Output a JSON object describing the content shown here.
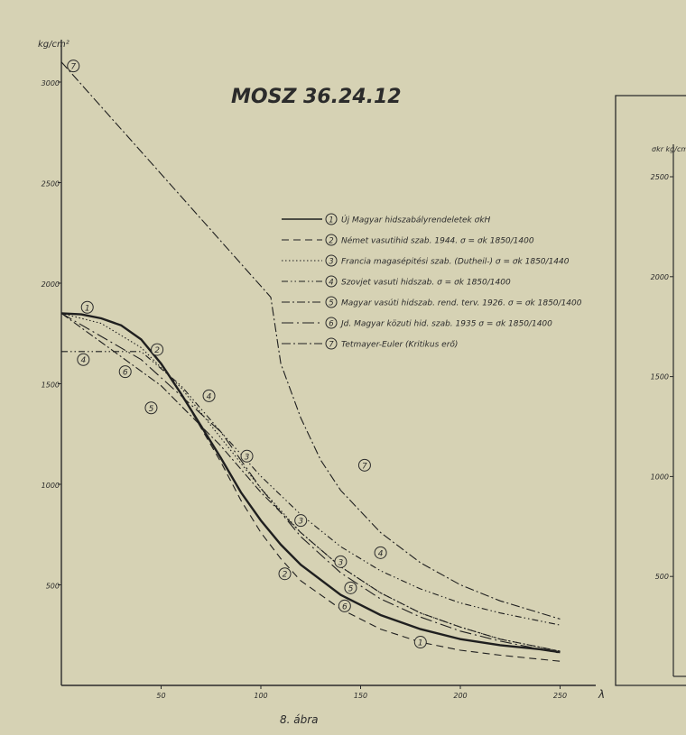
{
  "chart_data": [
    {
      "type": "line",
      "title": "MOSZ 36.24.12",
      "caption": "8. ábra",
      "ylabel": "kg/cm²",
      "xlabel": "λ",
      "xlim": [
        0,
        270
      ],
      "ylim": [
        0,
        3250
      ],
      "x_ticks": [
        50,
        100,
        150,
        200,
        250
      ],
      "y_ticks": [
        500,
        1000,
        1500,
        2000,
        2500,
        3000
      ],
      "grid": false,
      "legend_position": "top-right",
      "series": [
        {
          "id": 1,
          "marker": "1",
          "name": "Új Magyar hidszabályrendeletek σkH",
          "dash": "solid-thick",
          "points": [
            [
              0,
              1850
            ],
            [
              10,
              1845
            ],
            [
              20,
              1825
            ],
            [
              30,
              1790
            ],
            [
              40,
              1720
            ],
            [
              50,
              1600
            ],
            [
              60,
              1450
            ],
            [
              70,
              1290
            ],
            [
              80,
              1130
            ],
            [
              90,
              960
            ],
            [
              100,
              820
            ],
            [
              110,
              700
            ],
            [
              120,
              600
            ],
            [
              140,
              450
            ],
            [
              160,
              350
            ],
            [
              180,
              280
            ],
            [
              200,
              230
            ],
            [
              220,
              200
            ],
            [
              240,
              180
            ],
            [
              250,
              165
            ]
          ],
          "label_at": [
            180,
            215
          ]
        },
        {
          "id": 2,
          "marker": "2",
          "name": "Német vasutihid szab. 1944. σ = σk 1850/1400",
          "dash": "dashed",
          "points": [
            [
              0,
              1850
            ],
            [
              10,
              1845
            ],
            [
              20,
              1825
            ],
            [
              30,
              1790
            ],
            [
              40,
              1720
            ],
            [
              50,
              1600
            ],
            [
              60,
              1450
            ],
            [
              70,
              1280
            ],
            [
              80,
              1110
            ],
            [
              90,
              920
            ],
            [
              100,
              760
            ],
            [
              110,
              630
            ],
            [
              120,
              520
            ],
            [
              140,
              380
            ],
            [
              160,
              280
            ],
            [
              180,
              215
            ],
            [
              200,
              175
            ],
            [
              220,
              150
            ],
            [
              240,
              130
            ],
            [
              250,
              120
            ]
          ],
          "label_at": [
            112,
            555
          ]
        },
        {
          "id": 3,
          "marker": "3",
          "name": "Francia magasépitési szab. (Dutheil-) σ = σk 1850/1440",
          "dash": "dotted",
          "points": [
            [
              0,
              1850
            ],
            [
              20,
              1800
            ],
            [
              40,
              1680
            ],
            [
              60,
              1480
            ],
            [
              80,
              1230
            ],
            [
              100,
              980
            ],
            [
              120,
              760
            ],
            [
              140,
              590
            ],
            [
              160,
              460
            ],
            [
              180,
              360
            ],
            [
              200,
              290
            ],
            [
              220,
              230
            ],
            [
              250,
              170
            ]
          ],
          "label_at": [
            140,
            615
          ]
        },
        {
          "id": 4,
          "marker": "4",
          "name": "Szovjet vasuti hidszab. σ = σk 1850/1400",
          "dash": "dash-dot-dot",
          "points": [
            [
              0,
              1660
            ],
            [
              40,
              1660
            ],
            [
              60,
              1490
            ],
            [
              80,
              1260
            ],
            [
              100,
              1040
            ],
            [
              120,
              850
            ],
            [
              140,
              690
            ],
            [
              160,
              570
            ],
            [
              180,
              480
            ],
            [
              200,
              410
            ],
            [
              220,
              360
            ],
            [
              250,
              300
            ]
          ],
          "label_at": [
            160,
            660
          ]
        },
        {
          "id": 5,
          "marker": "5",
          "name": "Magyar vasúti hidszab. rend. terv. 1926. σ = σk 1850/1400",
          "dash": "dash-dot",
          "points": [
            [
              0,
              1850
            ],
            [
              50,
              1490
            ],
            [
              80,
              1190
            ],
            [
              100,
              960
            ],
            [
              120,
              760
            ],
            [
              140,
              590
            ],
            [
              160,
              460
            ],
            [
              180,
              360
            ],
            [
              200,
              290
            ],
            [
              220,
              230
            ],
            [
              250,
              170
            ]
          ],
          "label_at": [
            45,
            1380
          ]
        },
        {
          "id": 6,
          "marker": "6",
          "name": "Jd. Magyar közuti hid. szab. 1935 σ = σk 1850/1400",
          "dash": "long-dash-dot",
          "points": [
            [
              0,
              1850
            ],
            [
              40,
              1620
            ],
            [
              80,
              1260
            ],
            [
              100,
              980
            ],
            [
              120,
              740
            ],
            [
              140,
              560
            ],
            [
              160,
              430
            ],
            [
              180,
              340
            ],
            [
              200,
              270
            ],
            [
              220,
              220
            ],
            [
              250,
              160
            ]
          ],
          "label_at": [
            32,
            1560
          ]
        },
        {
          "id": 7,
          "marker": "7",
          "name": "Tetmayer-Euler (Kritikus erő)",
          "dash": "dash-dot-long",
          "points": [
            [
              0,
              3100
            ],
            [
              105,
              1930
            ],
            [
              110,
              1600
            ],
            [
              120,
              1330
            ],
            [
              130,
              1120
            ],
            [
              140,
              970
            ],
            [
              160,
              760
            ],
            [
              180,
              610
            ],
            [
              200,
              500
            ],
            [
              220,
              420
            ],
            [
              250,
              330
            ]
          ],
          "label_at": [
            152,
            1095
          ]
        }
      ],
      "extra_labels": [
        {
          "marker": "1",
          "at": [
            13,
            1880
          ]
        },
        {
          "marker": "2",
          "at": [
            48,
            1670
          ]
        },
        {
          "marker": "3",
          "at": [
            93,
            1140
          ]
        },
        {
          "marker": "3",
          "at": [
            120,
            820
          ]
        },
        {
          "marker": "4",
          "at": [
            11,
            1620
          ]
        },
        {
          "marker": "4",
          "at": [
            74,
            1440
          ]
        },
        {
          "marker": "5",
          "at": [
            145,
            485
          ]
        },
        {
          "marker": "6",
          "at": [
            142,
            395
          ]
        },
        {
          "marker": "7",
          "at": [
            6,
            3080
          ]
        }
      ]
    },
    {
      "type": "line",
      "ylabel": "σkr kg/cm²",
      "y_ticks": [
        500,
        1000,
        1500,
        2000,
        2500
      ],
      "series": []
    }
  ]
}
